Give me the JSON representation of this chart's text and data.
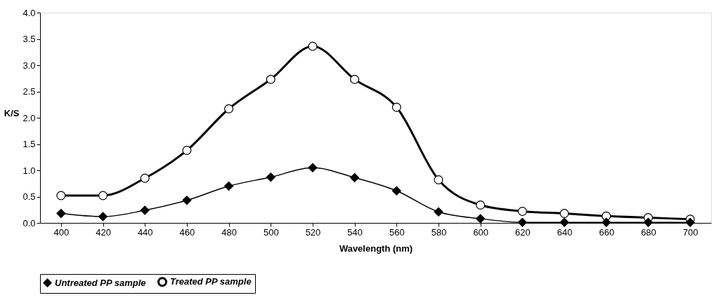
{
  "chart_data": {
    "type": "line",
    "xlabel": "Wavelength (nm)",
    "ylabel": "K/S",
    "categories": [
      "400",
      "420",
      "440",
      "460",
      "480",
      "500",
      "520",
      "540",
      "560",
      "580",
      "600",
      "620",
      "640",
      "660",
      "680",
      "700"
    ],
    "series": [
      {
        "name": "Untreated PP sample",
        "color": "#000000",
        "marker": "diamond",
        "values": [
          0.18,
          0.12,
          0.24,
          0.43,
          0.7,
          0.87,
          1.05,
          0.86,
          0.61,
          0.21,
          0.08,
          0.01,
          0.01,
          0.01,
          0.01,
          0.01
        ]
      },
      {
        "name": "Treated PP sample",
        "color": "#000000",
        "marker": "circle",
        "values": [
          0.52,
          0.52,
          0.85,
          1.38,
          2.17,
          2.73,
          3.36,
          2.73,
          2.2,
          0.82,
          0.34,
          0.22,
          0.18,
          0.13,
          0.1,
          0.07
        ]
      }
    ],
    "ylim": [
      0,
      4.0
    ],
    "yticks": [
      {
        "value": 0,
        "label": "0.0"
      },
      {
        "value": 0.5,
        "label": "0.5"
      },
      {
        "value": 1,
        "label": "1.0"
      },
      {
        "value": 1.5,
        "label": "1.5"
      },
      {
        "value": 2,
        "label": "2.0"
      },
      {
        "value": 2.5,
        "label": "2.5"
      },
      {
        "value": 3,
        "label": "3.0"
      },
      {
        "value": 3.5,
        "label": "3.5"
      },
      {
        "value": 4,
        "label": "4.0"
      }
    ],
    "grid": false,
    "legend": "bottom",
    "line_style": "solid"
  }
}
